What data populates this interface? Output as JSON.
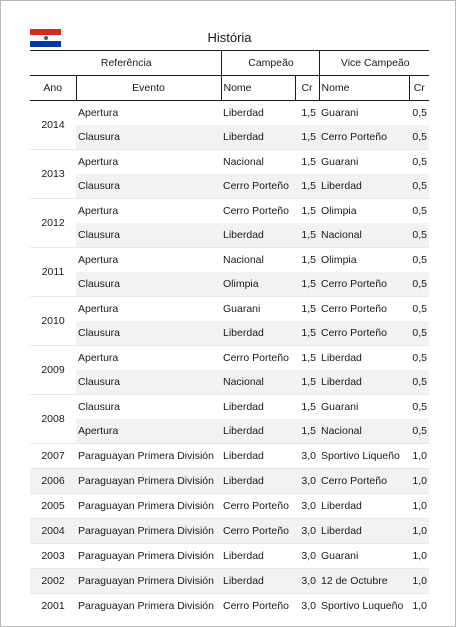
{
  "title": "História",
  "flag": {
    "colors": [
      "#d52b1e",
      "#ffffff",
      "#0038a8"
    ],
    "emblem": "paraguay-flag-icon"
  },
  "headers": {
    "referencia": "Referência",
    "campeao": "Campeão",
    "vice": "Vice Campeão",
    "ano": "Ano",
    "evento": "Evento",
    "nome": "Nome",
    "cr": "Cr"
  },
  "groups": [
    {
      "year": "2014",
      "rows": [
        {
          "evento": "Apertura",
          "campeao": "Liberdad",
          "cr1": "1,5",
          "vice": "Guarani",
          "cr2": "0,5"
        },
        {
          "evento": "Clausura",
          "campeao": "Liberdad",
          "cr1": "1,5",
          "vice": "Cerro Porteño",
          "cr2": "0,5"
        }
      ]
    },
    {
      "year": "2013",
      "rows": [
        {
          "evento": "Apertura",
          "campeao": "Nacional",
          "cr1": "1,5",
          "vice": "Guarani",
          "cr2": "0,5"
        },
        {
          "evento": "Clausura",
          "campeao": "Cerro Porteño",
          "cr1": "1,5",
          "vice": "Liberdad",
          "cr2": "0,5"
        }
      ]
    },
    {
      "year": "2012",
      "rows": [
        {
          "evento": "Apertura",
          "campeao": "Cerro Porteño",
          "cr1": "1,5",
          "vice": "Olimpia",
          "cr2": "0,5"
        },
        {
          "evento": "Clausura",
          "campeao": "Liberdad",
          "cr1": "1,5",
          "vice": "Nacional",
          "cr2": "0,5"
        }
      ]
    },
    {
      "year": "2011",
      "rows": [
        {
          "evento": "Apertura",
          "campeao": "Nacional",
          "cr1": "1,5",
          "vice": "Olimpia",
          "cr2": "0,5"
        },
        {
          "evento": "Clausura",
          "campeao": "Olimpia",
          "cr1": "1,5",
          "vice": "Cerro Porteño",
          "cr2": "0,5"
        }
      ]
    },
    {
      "year": "2010",
      "rows": [
        {
          "evento": "Apertura",
          "campeao": "Guarani",
          "cr1": "1,5",
          "vice": "Cerro Porteño",
          "cr2": "0,5"
        },
        {
          "evento": "Clausura",
          "campeao": "Liberdad",
          "cr1": "1,5",
          "vice": "Cerro Porteño",
          "cr2": "0,5"
        }
      ]
    },
    {
      "year": "2009",
      "rows": [
        {
          "evento": "Apertura",
          "campeao": "Cerro Porteño",
          "cr1": "1,5",
          "vice": "Liberdad",
          "cr2": "0,5"
        },
        {
          "evento": "Clausura",
          "campeao": "Nacional",
          "cr1": "1,5",
          "vice": "Liberdad",
          "cr2": "0,5"
        }
      ]
    },
    {
      "year": "2008",
      "rows": [
        {
          "evento": "Clausura",
          "campeao": "Liberdad",
          "cr1": "1,5",
          "vice": "Guarani",
          "cr2": "0,5"
        },
        {
          "evento": "Apertura",
          "campeao": "Liberdad",
          "cr1": "1,5",
          "vice": "Nacional",
          "cr2": "0,5"
        }
      ]
    },
    {
      "year": "2007",
      "rows": [
        {
          "evento": "Paraguayan Primera División",
          "campeao": "Liberdad",
          "cr1": "3,0",
          "vice": "Sportivo Liqueño",
          "cr2": "1,0"
        }
      ]
    },
    {
      "year": "2006",
      "rows": [
        {
          "evento": "Paraguayan Primera División",
          "campeao": "Liberdad",
          "cr1": "3,0",
          "vice": "Cerro Porteño",
          "cr2": "1,0"
        }
      ]
    },
    {
      "year": "2005",
      "rows": [
        {
          "evento": "Paraguayan Primera División",
          "campeao": "Cerro Porteño",
          "cr1": "3,0",
          "vice": "Liberdad",
          "cr2": "1,0"
        }
      ]
    },
    {
      "year": "2004",
      "rows": [
        {
          "evento": "Paraguayan Primera División",
          "campeao": "Cerro Porteño",
          "cr1": "3,0",
          "vice": "Liberdad",
          "cr2": "1,0"
        }
      ]
    },
    {
      "year": "2003",
      "rows": [
        {
          "evento": "Paraguayan Primera División",
          "campeao": "Liberdad",
          "cr1": "3,0",
          "vice": "Guarani",
          "cr2": "1,0"
        }
      ]
    },
    {
      "year": "2002",
      "rows": [
        {
          "evento": "Paraguayan Primera División",
          "campeao": "Liberdad",
          "cr1": "3,0",
          "vice": "12 de Octubre",
          "cr2": "1,0"
        }
      ]
    },
    {
      "year": "2001",
      "rows": [
        {
          "evento": "Paraguayan Primera División",
          "campeao": "Cerro Porteño",
          "cr1": "3,0",
          "vice": "Sportivo Luqueño",
          "cr2": "1,0"
        }
      ]
    }
  ]
}
